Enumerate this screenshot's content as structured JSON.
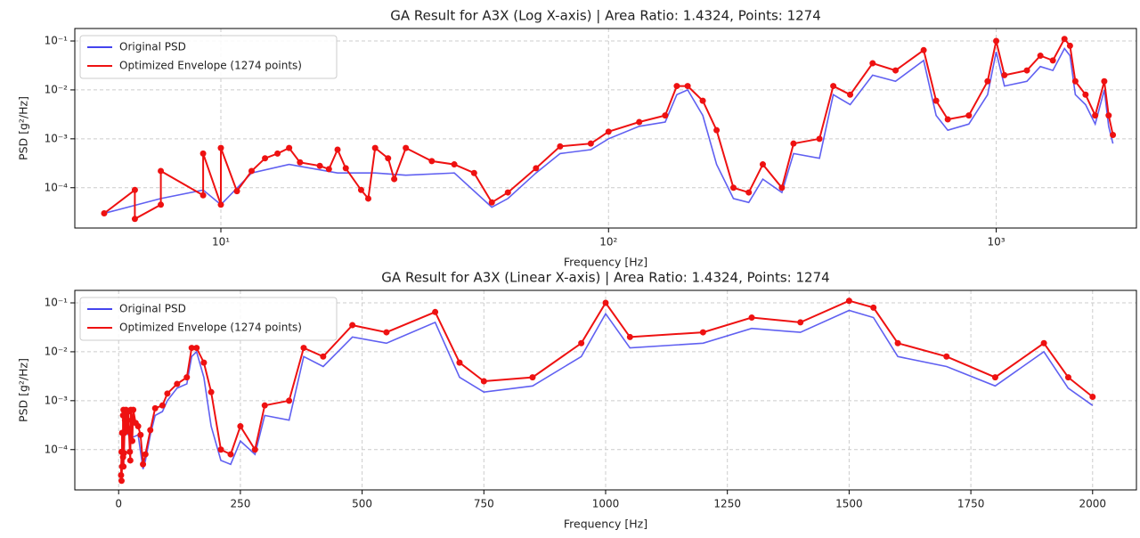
{
  "chart_data": [
    {
      "type": "line",
      "title": "GA Result for A3X (Log X-axis) | Area Ratio: 1.4324, Points: 1274",
      "xlabel": "Frequency [Hz]",
      "ylabel": "PSD [g²/Hz]",
      "xscale": "log",
      "yscale": "log",
      "grid": true,
      "legend": "upper left",
      "xlim": [
        4.2,
        2300
      ],
      "xticks": [
        {
          "value": 10,
          "label": "10¹"
        },
        {
          "value": 100,
          "label": "10²"
        },
        {
          "value": 1000,
          "label": "10³"
        }
      ],
      "ylim": [
        1.5e-05,
        0.18
      ],
      "yticks": [
        {
          "value": 0.0001,
          "label": "10⁻⁴"
        },
        {
          "value": 0.001,
          "label": "10⁻³"
        },
        {
          "value": 0.01,
          "label": "10⁻²"
        },
        {
          "value": 0.1,
          "label": "10⁻¹"
        }
      ],
      "series": [
        {
          "name": "Original PSD",
          "color": "#4444ee",
          "marker": false,
          "x": [
            5,
            7,
            9,
            10,
            12,
            15,
            20,
            25,
            30,
            40,
            50,
            55,
            65,
            75,
            90,
            100,
            120,
            140,
            150,
            160,
            175,
            190,
            210,
            230,
            250,
            280,
            300,
            350,
            380,
            420,
            480,
            550,
            650,
            700,
            750,
            850,
            950,
            1000,
            1050,
            1200,
            1300,
            1400,
            1500,
            1550,
            1600,
            1700,
            1800,
            1900,
            1950,
            2000
          ],
          "values": [
            3e-05,
            6e-05,
            9e-05,
            4.5e-05,
            0.0002,
            0.0003,
            0.0002,
            0.0002,
            0.00018,
            0.0002,
            4e-05,
            6e-05,
            0.0002,
            0.0005,
            0.0006,
            0.001,
            0.0018,
            0.0022,
            0.008,
            0.01,
            0.003,
            0.0003,
            6e-05,
            5e-05,
            0.00015,
            8e-05,
            0.0005,
            0.0004,
            0.008,
            0.005,
            0.02,
            0.015,
            0.04,
            0.003,
            0.0015,
            0.002,
            0.008,
            0.06,
            0.012,
            0.015,
            0.03,
            0.025,
            0.07,
            0.05,
            0.008,
            0.005,
            0.002,
            0.01,
            0.0018,
            0.0008
          ]
        },
        {
          "name": "Optimized Envelope (1274 points)",
          "color": "#ee1111",
          "marker": true,
          "x": [
            5,
            6,
            6,
            7,
            7,
            9,
            9,
            10,
            10,
            11,
            12,
            13,
            14,
            15,
            16,
            18,
            19,
            20,
            21,
            23,
            24,
            25,
            27,
            28,
            30,
            35,
            40,
            45,
            50,
            55,
            65,
            75,
            90,
            100,
            120,
            140,
            150,
            160,
            175,
            190,
            210,
            230,
            250,
            280,
            300,
            350,
            380,
            420,
            480,
            550,
            650,
            700,
            750,
            850,
            950,
            1000,
            1050,
            1200,
            1300,
            1400,
            1500,
            1550,
            1600,
            1700,
            1800,
            1900,
            1950,
            2000
          ],
          "values": [
            3e-05,
            9e-05,
            2.3e-05,
            4.5e-05,
            0.00022,
            7e-05,
            0.0005,
            4.5e-05,
            0.00065,
            8.5e-05,
            0.00022,
            0.0004,
            0.0005,
            0.00065,
            0.00033,
            0.00028,
            0.00024,
            0.0006,
            0.00025,
            9e-05,
            6e-05,
            0.00065,
            0.0004,
            0.00015,
            0.00065,
            0.00035,
            0.0003,
            0.0002,
            5e-05,
            8e-05,
            0.00025,
            0.0007,
            0.0008,
            0.0014,
            0.0022,
            0.003,
            0.012,
            0.012,
            0.006,
            0.0015,
            0.0001,
            8e-05,
            0.0003,
            0.0001,
            0.0008,
            0.001,
            0.012,
            0.008,
            0.035,
            0.025,
            0.065,
            0.006,
            0.0025,
            0.003,
            0.015,
            0.1,
            0.02,
            0.025,
            0.05,
            0.04,
            0.11,
            0.08,
            0.015,
            0.008,
            0.003,
            0.015,
            0.003,
            0.0012
          ]
        }
      ]
    },
    {
      "type": "line",
      "title": "GA Result for A3X (Linear X-axis) | Area Ratio: 1.4324, Points: 1274",
      "xlabel": "Frequency [Hz]",
      "ylabel": "PSD [g²/Hz]",
      "xscale": "linear",
      "yscale": "log",
      "grid": true,
      "legend": "upper left",
      "xlim": [
        -90,
        2090
      ],
      "xticks": [
        0,
        250,
        500,
        750,
        1000,
        1250,
        1500,
        1750,
        2000
      ],
      "ylim": [
        1.5e-05,
        0.18
      ],
      "yticks": [
        {
          "value": 0.0001,
          "label": "10⁻⁴"
        },
        {
          "value": 0.001,
          "label": "10⁻³"
        },
        {
          "value": 0.01,
          "label": "10⁻²"
        },
        {
          "value": 0.1,
          "label": "10⁻¹"
        }
      ],
      "series": [
        {
          "name": "Original PSD",
          "color": "#4444ee",
          "marker": false,
          "x": [
            5,
            7,
            9,
            10,
            12,
            15,
            20,
            25,
            30,
            40,
            50,
            55,
            65,
            75,
            90,
            100,
            120,
            140,
            150,
            160,
            175,
            190,
            210,
            230,
            250,
            280,
            300,
            350,
            380,
            420,
            480,
            550,
            650,
            700,
            750,
            850,
            950,
            1000,
            1050,
            1200,
            1300,
            1400,
            1500,
            1550,
            1600,
            1700,
            1800,
            1900,
            1950,
            2000
          ],
          "values": [
            3e-05,
            6e-05,
            9e-05,
            4.5e-05,
            0.0002,
            0.0003,
            0.0002,
            0.0002,
            0.00018,
            0.0002,
            4e-05,
            6e-05,
            0.0002,
            0.0005,
            0.0006,
            0.001,
            0.0018,
            0.0022,
            0.008,
            0.01,
            0.003,
            0.0003,
            6e-05,
            5e-05,
            0.00015,
            8e-05,
            0.0005,
            0.0004,
            0.008,
            0.005,
            0.02,
            0.015,
            0.04,
            0.003,
            0.0015,
            0.002,
            0.008,
            0.06,
            0.012,
            0.015,
            0.03,
            0.025,
            0.07,
            0.05,
            0.008,
            0.005,
            0.002,
            0.01,
            0.0018,
            0.0008
          ]
        },
        {
          "name": "Optimized Envelope (1274 points)",
          "color": "#ee1111",
          "marker": true,
          "x": [
            5,
            6,
            6,
            7,
            7,
            9,
            9,
            10,
            10,
            11,
            12,
            13,
            14,
            15,
            16,
            18,
            19,
            20,
            21,
            23,
            24,
            25,
            27,
            28,
            30,
            35,
            40,
            45,
            50,
            55,
            65,
            75,
            90,
            100,
            120,
            140,
            150,
            160,
            175,
            190,
            210,
            230,
            250,
            280,
            300,
            350,
            380,
            420,
            480,
            550,
            650,
            700,
            750,
            850,
            950,
            1000,
            1050,
            1200,
            1300,
            1400,
            1500,
            1550,
            1600,
            1700,
            1800,
            1900,
            1950,
            2000
          ],
          "values": [
            3e-05,
            9e-05,
            2.3e-05,
            4.5e-05,
            0.00022,
            7e-05,
            0.0005,
            4.5e-05,
            0.00065,
            8.5e-05,
            0.00022,
            0.0004,
            0.0005,
            0.00065,
            0.00033,
            0.00028,
            0.00024,
            0.0006,
            0.00025,
            9e-05,
            6e-05,
            0.00065,
            0.0004,
            0.00015,
            0.00065,
            0.00035,
            0.0003,
            0.0002,
            5e-05,
            8e-05,
            0.00025,
            0.0007,
            0.0008,
            0.0014,
            0.0022,
            0.003,
            0.012,
            0.012,
            0.006,
            0.0015,
            0.0001,
            8e-05,
            0.0003,
            0.0001,
            0.0008,
            0.001,
            0.012,
            0.008,
            0.035,
            0.025,
            0.065,
            0.006,
            0.0025,
            0.003,
            0.015,
            0.1,
            0.02,
            0.025,
            0.05,
            0.04,
            0.11,
            0.08,
            0.015,
            0.008,
            0.003,
            0.015,
            0.003,
            0.0012
          ]
        }
      ]
    }
  ]
}
